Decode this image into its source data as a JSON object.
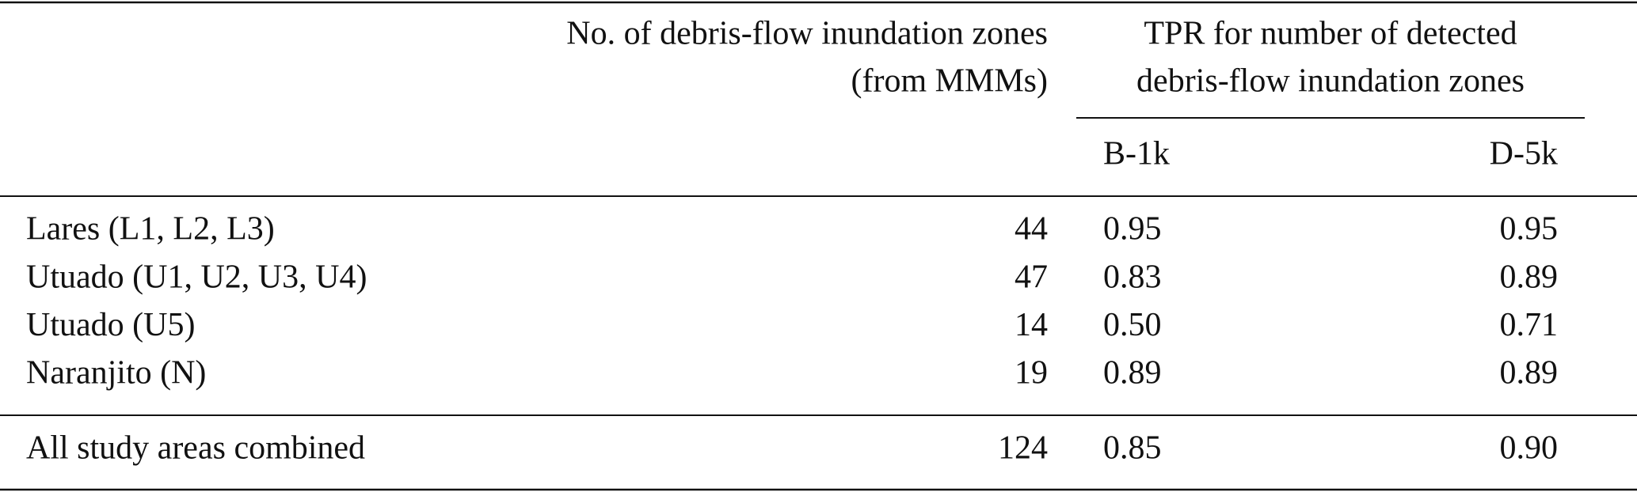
{
  "table": {
    "columns": {
      "count": [
        "No. of debris-flow inundation zones",
        "(from MMMs)"
      ],
      "tpr": [
        "TPR for number of detected",
        "debris-flow inundation zones"
      ],
      "sub": [
        "B-1k",
        "D-5k"
      ]
    },
    "rows": [
      [
        "Lares (L1, L2, L3)",
        "44",
        "0.95",
        "0.95"
      ],
      [
        "Utuado (U1, U2, U3, U4)",
        "47",
        "0.83",
        "0.89"
      ],
      [
        "Utuado (U5)",
        "14",
        "0.50",
        "0.71"
      ],
      [
        "Naranjito (N)",
        "19",
        "0.89",
        "0.89"
      ]
    ],
    "total": [
      "All study areas combined",
      "124",
      "0.85",
      "0.90"
    ]
  }
}
